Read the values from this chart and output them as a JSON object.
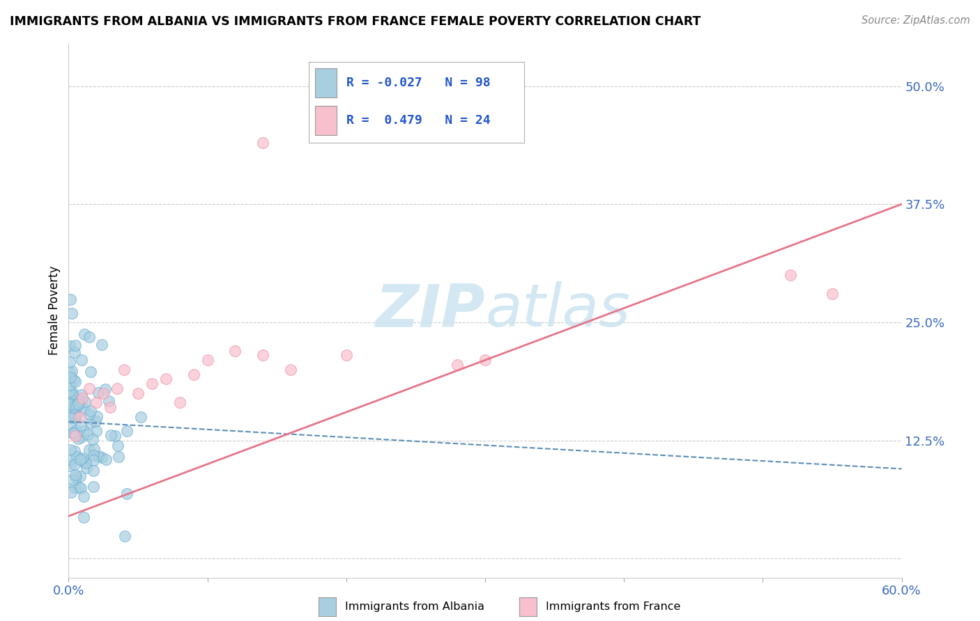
{
  "title": "IMMIGRANTS FROM ALBANIA VS IMMIGRANTS FROM FRANCE FEMALE POVERTY CORRELATION CHART",
  "source": "Source: ZipAtlas.com",
  "ylabel": "Female Poverty",
  "xmin": 0.0,
  "xmax": 0.6,
  "ymin": -0.02,
  "ymax": 0.545,
  "yticks": [
    0.0,
    0.125,
    0.25,
    0.375,
    0.5
  ],
  "ytick_labels": [
    "",
    "12.5%",
    "25.0%",
    "37.5%",
    "50.0%"
  ],
  "albania_R": -0.027,
  "albania_N": 98,
  "france_R": 0.479,
  "france_N": 24,
  "albania_color": "#a8cfe0",
  "albania_edge_color": "#6aaed6",
  "france_color": "#f7c0cc",
  "france_edge_color": "#f093aa",
  "albania_line_color": "#5b8db8",
  "france_line_color": "#e8748a",
  "watermark_color": "#cce4f0",
  "legend_entries": [
    "Immigrants from Albania",
    "Immigrants from France"
  ],
  "albania_line_y0": 0.145,
  "albania_line_y1": 0.095,
  "france_line_y0": 0.045,
  "france_line_y1": 0.375
}
